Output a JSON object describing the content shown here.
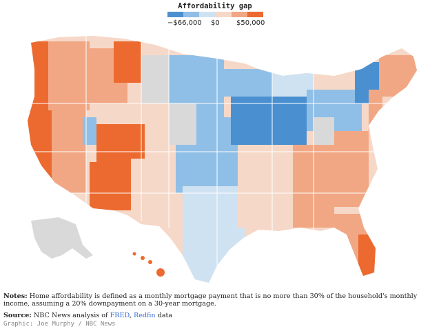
{
  "legend": {
    "title": "Affordability gap",
    "labels": [
      "−$66,000",
      "$0",
      "$50,000"
    ],
    "colors": [
      "#4a90d0",
      "#8fbfe6",
      "#cfe2f2",
      "#f6d8c8",
      "#f2a784",
      "#ec6a30"
    ]
  },
  "map": {
    "colors": {
      "no_data": "#d9d9d9",
      "strong_negative": "#4a90d0",
      "negative": "#8fbfe6",
      "slight_negative": "#cfe2f2",
      "slight_positive": "#f6d8c8",
      "positive": "#f2a784",
      "strong_positive": "#ec6a30"
    }
  },
  "notes": {
    "label": "Notes:",
    "text": "Home affordability is defined as a monthly mortgage payment that is no more than 30% of the household's monthly income, assuming a 20% downpayment on a 30-year mortgage."
  },
  "source": {
    "label": "Source:",
    "text_before": "NBC News analysis of",
    "link1": "FRED",
    "link2": "Redfin",
    "text_after": "data"
  },
  "credit": "Graphic: Joe Murphy / NBC News"
}
